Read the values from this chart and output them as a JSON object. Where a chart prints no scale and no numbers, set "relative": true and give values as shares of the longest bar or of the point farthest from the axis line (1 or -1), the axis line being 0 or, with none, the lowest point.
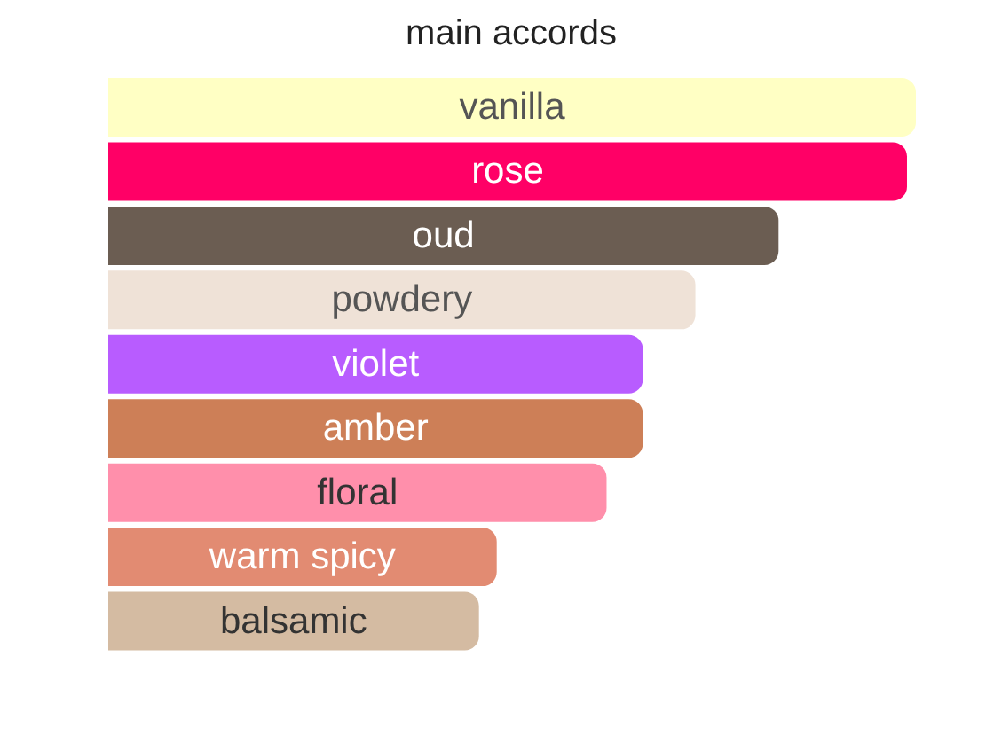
{
  "chart_data": {
    "type": "bar",
    "orientation": "horizontal",
    "relative": true,
    "title": "main accords",
    "categories": [
      "vanilla",
      "rose",
      "oud",
      "powdery",
      "violet",
      "amber",
      "floral",
      "warm spicy",
      "balsamic"
    ],
    "values": [
      1,
      0.989,
      0.83,
      0.727,
      0.662,
      0.662,
      0.617,
      0.481,
      0.459
    ],
    "colors": [
      "#ffffc4",
      "#ff0066",
      "#6b5d52",
      "#efe2d7",
      "#b85cff",
      "#cd7f57",
      "#ff8fab",
      "#e28b72",
      "#d4bba2"
    ]
  }
}
